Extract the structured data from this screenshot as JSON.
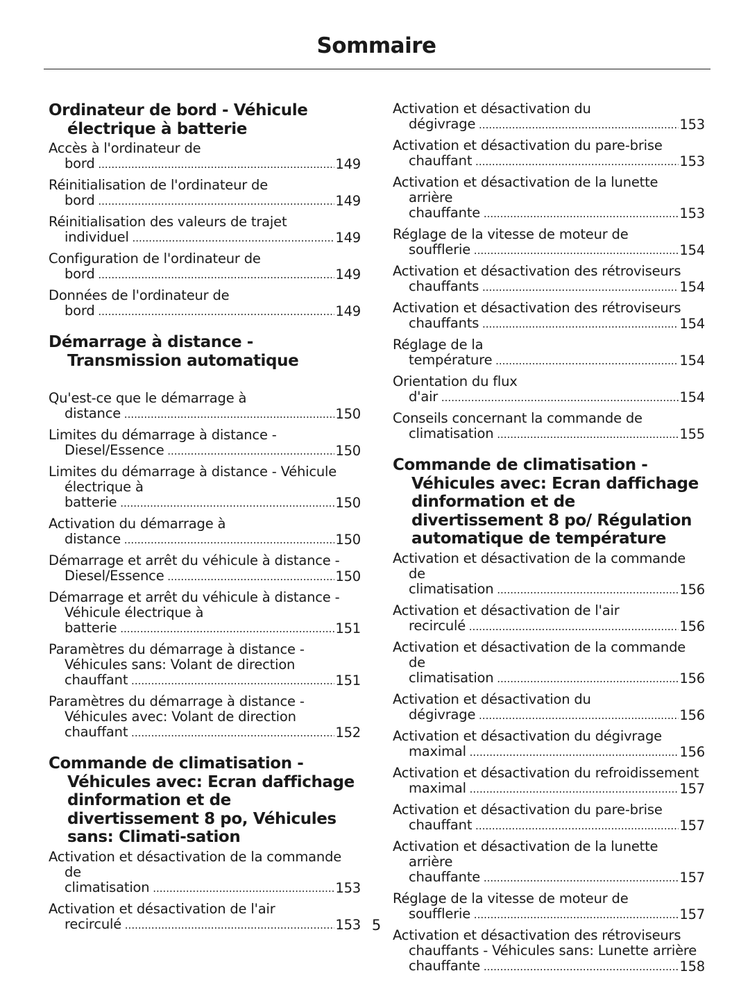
{
  "title": "Sommaire",
  "page_number": "5",
  "left_column": [
    {
      "heading": "Ordinateur de bord - Véhicule électrique à batterie",
      "entries": [
        {
          "text": "Accès à l'ordinateur de bord",
          "page": "149"
        },
        {
          "text": "Réinitialisation de l'ordinateur de bord",
          "page": "149"
        },
        {
          "text": "Réinitialisation des valeurs de trajet individuel",
          "page": "149"
        },
        {
          "text": "Configuration de l'ordinateur de bord",
          "page": "149"
        },
        {
          "text": "Données de l'ordinateur de bord",
          "page": "149"
        }
      ]
    },
    {
      "heading": "Démarrage à distance - Transmission automatique",
      "entries": [
        {
          "text": "Qu'est-ce que le démarrage à distance",
          "page": "150"
        },
        {
          "text": "Limites du démarrage à distance - Diesel/Essence",
          "page": "150"
        },
        {
          "text": "Limites du démarrage à distance - Véhicule électrique à batterie",
          "page": "150"
        },
        {
          "text": "Activation du démarrage à distance",
          "page": "150"
        },
        {
          "text": "Démarrage et arrêt du véhicule à distance - Diesel/Essence",
          "page": "150"
        },
        {
          "text": "Démarrage et arrêt du véhicule à distance - Véhicule électrique à batterie",
          "page": "151"
        },
        {
          "text": "Paramètres du démarrage à distance - Véhicules sans: Volant de direction chauffant",
          "page": "151"
        },
        {
          "text": "Paramètres du démarrage à distance - Véhicules avec: Volant de direction chauffant",
          "page": "152"
        }
      ]
    },
    {
      "heading": "Commande de climatisation - Véhicules avec: Ecran daffichage dinformation et de divertissement 8 po, Véhicules sans: Climati-sation",
      "entries": [
        {
          "text": "Activation et désactivation de la commande de climatisation",
          "page": "153"
        },
        {
          "text": "Activation et désactivation de l'air recirculé",
          "page": "153"
        }
      ]
    }
  ],
  "right_column": [
    {
      "heading": "",
      "entries": [
        {
          "text": "Activation et désactivation du dégivrage",
          "page": "153"
        },
        {
          "text": "Activation et désactivation du pare-brise chauffant",
          "page": "153"
        },
        {
          "text": "Activation et désactivation de la lunette arrière chauffante",
          "page": "153"
        },
        {
          "text": "Réglage de la vitesse de moteur de soufflerie",
          "page": "154"
        },
        {
          "text": "Activation et désactivation des rétroviseurs chauffants",
          "page": "154"
        },
        {
          "text": "Activation et désactivation des rétroviseurs chauffants",
          "page": "154"
        },
        {
          "text": "Réglage de la température",
          "page": "154"
        },
        {
          "text": "Orientation du flux d'air",
          "page": "154"
        },
        {
          "text": "Conseils concernant la commande de climatisation",
          "page": "155"
        }
      ]
    },
    {
      "heading": "Commande de climatisation - Véhicules avec: Ecran daffichage dinformation et de divertissement 8 po/ Régulation automatique de température",
      "entries": [
        {
          "text": "Activation et désactivation de la commande de climatisation",
          "page": "156"
        },
        {
          "text": "Activation et désactivation de l'air recirculé",
          "page": "156"
        },
        {
          "text": "Activation et désactivation de la commande de climatisation",
          "page": "156"
        },
        {
          "text": "Activation et désactivation du dégivrage",
          "page": "156"
        },
        {
          "text": "Activation et désactivation du dégivrage maximal",
          "page": "156"
        },
        {
          "text": "Activation et désactivation du refroidissement maximal",
          "page": "157"
        },
        {
          "text": "Activation et désactivation du pare-brise chauffant",
          "page": "157"
        },
        {
          "text": "Activation et désactivation de la lunette arrière chauffante",
          "page": "157"
        },
        {
          "text": "Réglage de la vitesse de moteur de soufflerie",
          "page": "157"
        },
        {
          "text": "Activation et désactivation des rétroviseurs chauffants - Véhicules sans: Lunette arrière chauffante",
          "page": "158"
        }
      ]
    }
  ]
}
